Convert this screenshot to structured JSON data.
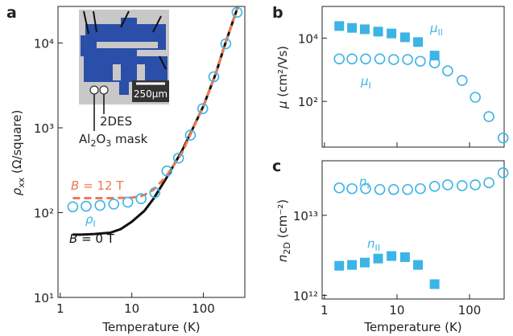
{
  "chart_data": [
    {
      "type": "line",
      "panel_label": "a",
      "xlabel": "Temperature (K)",
      "ylabel": {
        "symbol": "ρ",
        "sub": "xx",
        "rest": " (Ω/square)"
      },
      "log_x": true,
      "log_y": true,
      "xlim": [
        0.93,
        380
      ],
      "ylim": [
        10,
        27000
      ],
      "xticks": [
        1,
        10,
        100
      ],
      "yticks": [
        {
          "value": 10,
          "label": "10¹"
        },
        {
          "value": 100,
          "label": "10²"
        },
        {
          "value": 1000,
          "label": "10³"
        },
        {
          "value": 10000,
          "label": "10⁴"
        }
      ],
      "series": [
        {
          "label": {
            "symbol": "B",
            "rest": " = 0 T"
          },
          "color": "#111111",
          "linestyle": "solid",
          "x": [
            1.5,
            2,
            3,
            5,
            7,
            10,
            15,
            20,
            30,
            50,
            70,
            100,
            150,
            200,
            300
          ],
          "values": [
            55,
            55,
            56,
            58,
            64,
            78,
            105,
            145,
            250,
            530,
            950,
            1800,
            4400,
            9500,
            26000
          ]
        },
        {
          "label": {
            "symbol": "B",
            "rest": " = 12 T"
          },
          "color": "#f07850",
          "linestyle": "dashed",
          "x": [
            1.5,
            3,
            5,
            10,
            13,
            15,
            20,
            30,
            50,
            70,
            100,
            150,
            200,
            300
          ],
          "values": [
            148,
            148,
            148,
            150,
            155,
            162,
            185,
            265,
            500,
            930,
            1800,
            4400,
            9500,
            26000
          ]
        },
        {
          "label": {
            "symbol": "ρ",
            "sub": "I"
          },
          "color": "#3cb4e6",
          "marker": "circle",
          "x": [
            1.5,
            2.3,
            3.6,
            5.6,
            8.8,
            13.5,
            21,
            31,
            45,
            66,
            98,
            140,
            206,
            296
          ],
          "values": [
            117,
            119,
            122,
            126,
            133,
            146,
            172,
            310,
            440,
            820,
            1680,
            4000,
            9800,
            23000
          ]
        }
      ],
      "inset": {
        "scale_bar": "250μm",
        "device_label": "2DES",
        "mask_label": [
          "Al",
          "2",
          "O",
          "3",
          " mask"
        ]
      }
    },
    {
      "type": "line",
      "panel_label": "b",
      "ylabel": {
        "symbol": "μ",
        "rest": " (cm²/Vs)"
      },
      "log_x": true,
      "log_y": true,
      "xlim": [
        0.93,
        300
      ],
      "ylim": [
        3.6,
        100000
      ],
      "xticks": [
        1,
        10,
        100
      ],
      "show_xtick_labels": false,
      "yticks": [
        {
          "value": 100,
          "label": "10²"
        },
        {
          "value": 10000,
          "label": "10⁴"
        }
      ],
      "series": [
        {
          "label": {
            "symbol": "μ",
            "sub": "II"
          },
          "color": "#3cb4e6",
          "marker": "square",
          "x": [
            1.6,
            2.4,
            3.6,
            5.5,
            8.4,
            12.9,
            19.5,
            33
          ],
          "values": [
            24000,
            21000,
            19000,
            16000,
            14000,
            10600,
            7500,
            2800
          ]
        },
        {
          "label": {
            "symbol": "μ",
            "sub": "I"
          },
          "color": "#3cb4e6",
          "marker": "circle",
          "x": [
            1.6,
            2.4,
            3.7,
            5.8,
            9,
            14,
            21,
            33,
            50,
            79,
            120,
            185,
            290
          ],
          "values": [
            2200,
            2200,
            2200,
            2200,
            2100,
            2100,
            1850,
            1650,
            920,
            460,
            135,
            33,
            7
          ]
        }
      ]
    },
    {
      "type": "line",
      "panel_label": "c",
      "xlabel": "Temperature (K)",
      "ylabel": {
        "symbol": "n",
        "sub": "2D",
        "rest": " (cm⁻²)"
      },
      "log_x": true,
      "log_y": true,
      "xlim": [
        0.93,
        300
      ],
      "ylim": [
        900000000000,
        48000000000000
      ],
      "xticks": [
        1,
        10,
        100
      ],
      "yticks": [
        {
          "value": 1000000000000,
          "label": "10¹²"
        },
        {
          "value": 10000000000000,
          "label": "10¹³"
        }
      ],
      "series": [
        {
          "label": {
            "symbol": "n",
            "sub": "I"
          },
          "color": "#3cb4e6",
          "marker": "circle",
          "x": [
            1.6,
            2.4,
            3.7,
            5.8,
            9,
            14,
            21,
            33,
            50,
            79,
            120,
            185,
            290
          ],
          "values": [
            22000000000000,
            21500000000000,
            21500000000000,
            21000000000000,
            21000000000000,
            21000000000000,
            21500000000000,
            23000000000000,
            24000000000000,
            23500000000000,
            24000000000000,
            25500000000000,
            34000000000000
          ]
        },
        {
          "label": {
            "symbol": "n",
            "sub": "II"
          },
          "color": "#3cb4e6",
          "marker": "square",
          "x": [
            1.6,
            2.4,
            3.6,
            5.5,
            8.4,
            12.9,
            19.5,
            33
          ],
          "values": [
            2340000000000,
            2400000000000,
            2570000000000,
            2880000000000,
            3100000000000,
            3000000000000,
            2400000000000,
            1380000000000
          ]
        }
      ]
    }
  ]
}
